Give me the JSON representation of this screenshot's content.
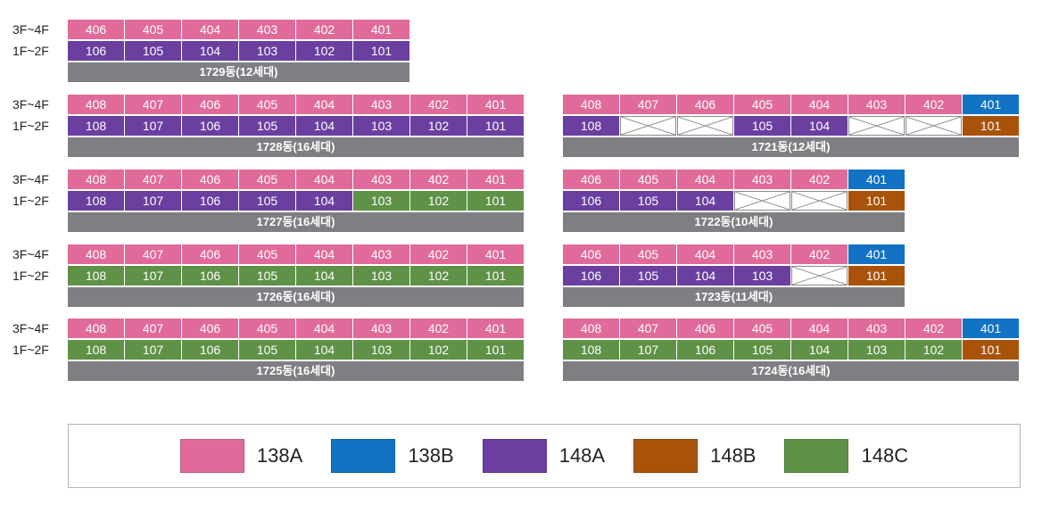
{
  "floor_labels": {
    "upper": "3F~4F",
    "lower": "1F~2F"
  },
  "colors": {
    "138A": "#e06b9b",
    "138B": "#1272c4",
    "148A": "#6a3fa0",
    "148B": "#a9520a",
    "148C": "#5f9146"
  },
  "legend": [
    {
      "type": "138A",
      "label": "138A"
    },
    {
      "type": "138B",
      "label": "138B"
    },
    {
      "type": "148A",
      "label": "148A"
    },
    {
      "type": "148B",
      "label": "148B"
    },
    {
      "type": "148C",
      "label": "148C"
    }
  ],
  "buildings": [
    {
      "id": "1729",
      "footer": "1729동(12세대)",
      "upper": [
        {
          "no": "406",
          "type": "138A"
        },
        {
          "no": "405",
          "type": "138A"
        },
        {
          "no": "404",
          "type": "138A"
        },
        {
          "no": "403",
          "type": "138A"
        },
        {
          "no": "402",
          "type": "138A"
        },
        {
          "no": "401",
          "type": "138A"
        }
      ],
      "lower": [
        {
          "no": "106",
          "type": "148A"
        },
        {
          "no": "105",
          "type": "148A"
        },
        {
          "no": "104",
          "type": "148A"
        },
        {
          "no": "103",
          "type": "148A"
        },
        {
          "no": "102",
          "type": "148A"
        },
        {
          "no": "101",
          "type": "148A"
        }
      ]
    },
    {
      "id": "1728",
      "footer": "1728동(16세대)",
      "upper": [
        {
          "no": "408",
          "type": "138A"
        },
        {
          "no": "407",
          "type": "138A"
        },
        {
          "no": "406",
          "type": "138A"
        },
        {
          "no": "405",
          "type": "138A"
        },
        {
          "no": "404",
          "type": "138A"
        },
        {
          "no": "403",
          "type": "138A"
        },
        {
          "no": "402",
          "type": "138A"
        },
        {
          "no": "401",
          "type": "138A"
        }
      ],
      "lower": [
        {
          "no": "108",
          "type": "148A"
        },
        {
          "no": "107",
          "type": "148A"
        },
        {
          "no": "106",
          "type": "148A"
        },
        {
          "no": "105",
          "type": "148A"
        },
        {
          "no": "104",
          "type": "148A"
        },
        {
          "no": "103",
          "type": "148A"
        },
        {
          "no": "102",
          "type": "148A"
        },
        {
          "no": "101",
          "type": "148A"
        }
      ]
    },
    {
      "id": "1727",
      "footer": "1727동(16세대)",
      "upper": [
        {
          "no": "408",
          "type": "138A"
        },
        {
          "no": "407",
          "type": "138A"
        },
        {
          "no": "406",
          "type": "138A"
        },
        {
          "no": "405",
          "type": "138A"
        },
        {
          "no": "404",
          "type": "138A"
        },
        {
          "no": "403",
          "type": "138A"
        },
        {
          "no": "402",
          "type": "138A"
        },
        {
          "no": "401",
          "type": "138A"
        }
      ],
      "lower": [
        {
          "no": "108",
          "type": "148A"
        },
        {
          "no": "107",
          "type": "148A"
        },
        {
          "no": "106",
          "type": "148A"
        },
        {
          "no": "105",
          "type": "148A"
        },
        {
          "no": "104",
          "type": "148A"
        },
        {
          "no": "103",
          "type": "148C"
        },
        {
          "no": "102",
          "type": "148C"
        },
        {
          "no": "101",
          "type": "148C"
        }
      ]
    },
    {
      "id": "1726",
      "footer": "1726동(16세대)",
      "upper": [
        {
          "no": "408",
          "type": "138A"
        },
        {
          "no": "407",
          "type": "138A"
        },
        {
          "no": "406",
          "type": "138A"
        },
        {
          "no": "405",
          "type": "138A"
        },
        {
          "no": "404",
          "type": "138A"
        },
        {
          "no": "403",
          "type": "138A"
        },
        {
          "no": "402",
          "type": "138A"
        },
        {
          "no": "401",
          "type": "138A"
        }
      ],
      "lower": [
        {
          "no": "108",
          "type": "148C"
        },
        {
          "no": "107",
          "type": "148C"
        },
        {
          "no": "106",
          "type": "148C"
        },
        {
          "no": "105",
          "type": "148C"
        },
        {
          "no": "104",
          "type": "148C"
        },
        {
          "no": "103",
          "type": "148C"
        },
        {
          "no": "102",
          "type": "148C"
        },
        {
          "no": "101",
          "type": "148C"
        }
      ]
    },
    {
      "id": "1725",
      "footer": "1725동(16세대)",
      "upper": [
        {
          "no": "408",
          "type": "138A"
        },
        {
          "no": "407",
          "type": "138A"
        },
        {
          "no": "406",
          "type": "138A"
        },
        {
          "no": "405",
          "type": "138A"
        },
        {
          "no": "404",
          "type": "138A"
        },
        {
          "no": "403",
          "type": "138A"
        },
        {
          "no": "402",
          "type": "138A"
        },
        {
          "no": "401",
          "type": "138A"
        }
      ],
      "lower": [
        {
          "no": "108",
          "type": "148C"
        },
        {
          "no": "107",
          "type": "148C"
        },
        {
          "no": "106",
          "type": "148C"
        },
        {
          "no": "105",
          "type": "148C"
        },
        {
          "no": "104",
          "type": "148C"
        },
        {
          "no": "103",
          "type": "148C"
        },
        {
          "no": "102",
          "type": "148C"
        },
        {
          "no": "101",
          "type": "148C"
        }
      ]
    },
    {
      "id": "1721",
      "footer": "1721동(12세대)",
      "upper": [
        {
          "no": "408",
          "type": "138A"
        },
        {
          "no": "407",
          "type": "138A"
        },
        {
          "no": "406",
          "type": "138A"
        },
        {
          "no": "405",
          "type": "138A"
        },
        {
          "no": "404",
          "type": "138A"
        },
        {
          "no": "403",
          "type": "138A"
        },
        {
          "no": "402",
          "type": "138A"
        },
        {
          "no": "401",
          "type": "138B"
        }
      ],
      "lower": [
        {
          "no": "108",
          "type": "148A"
        },
        {
          "no": "",
          "type": "empty"
        },
        {
          "no": "",
          "type": "empty"
        },
        {
          "no": "105",
          "type": "148A"
        },
        {
          "no": "104",
          "type": "148A"
        },
        {
          "no": "",
          "type": "empty"
        },
        {
          "no": "",
          "type": "empty"
        },
        {
          "no": "101",
          "type": "148B"
        }
      ]
    },
    {
      "id": "1722",
      "footer": "1722동(10세대)",
      "upper": [
        {
          "no": "406",
          "type": "138A"
        },
        {
          "no": "405",
          "type": "138A"
        },
        {
          "no": "404",
          "type": "138A"
        },
        {
          "no": "403",
          "type": "138A"
        },
        {
          "no": "402",
          "type": "138A"
        },
        {
          "no": "401",
          "type": "138B"
        }
      ],
      "lower": [
        {
          "no": "106",
          "type": "148A"
        },
        {
          "no": "105",
          "type": "148A"
        },
        {
          "no": "104",
          "type": "148A"
        },
        {
          "no": "",
          "type": "empty"
        },
        {
          "no": "",
          "type": "empty"
        },
        {
          "no": "101",
          "type": "148B"
        }
      ]
    },
    {
      "id": "1723",
      "footer": "1723동(11세대)",
      "upper": [
        {
          "no": "406",
          "type": "138A"
        },
        {
          "no": "405",
          "type": "138A"
        },
        {
          "no": "404",
          "type": "138A"
        },
        {
          "no": "403",
          "type": "138A"
        },
        {
          "no": "402",
          "type": "138A"
        },
        {
          "no": "401",
          "type": "138B"
        }
      ],
      "lower": [
        {
          "no": "106",
          "type": "148A"
        },
        {
          "no": "105",
          "type": "148A"
        },
        {
          "no": "104",
          "type": "148A"
        },
        {
          "no": "103",
          "type": "148A"
        },
        {
          "no": "",
          "type": "empty"
        },
        {
          "no": "101",
          "type": "148B"
        }
      ]
    },
    {
      "id": "1724",
      "footer": "1724동(16세대)",
      "upper": [
        {
          "no": "408",
          "type": "138A"
        },
        {
          "no": "407",
          "type": "138A"
        },
        {
          "no": "406",
          "type": "138A"
        },
        {
          "no": "405",
          "type": "138A"
        },
        {
          "no": "404",
          "type": "138A"
        },
        {
          "no": "403",
          "type": "138A"
        },
        {
          "no": "402",
          "type": "138A"
        },
        {
          "no": "401",
          "type": "138B"
        }
      ],
      "lower": [
        {
          "no": "108",
          "type": "148C"
        },
        {
          "no": "107",
          "type": "148C"
        },
        {
          "no": "106",
          "type": "148C"
        },
        {
          "no": "105",
          "type": "148C"
        },
        {
          "no": "104",
          "type": "148C"
        },
        {
          "no": "103",
          "type": "148C"
        },
        {
          "no": "102",
          "type": "148C"
        },
        {
          "no": "101",
          "type": "148B"
        }
      ]
    }
  ]
}
